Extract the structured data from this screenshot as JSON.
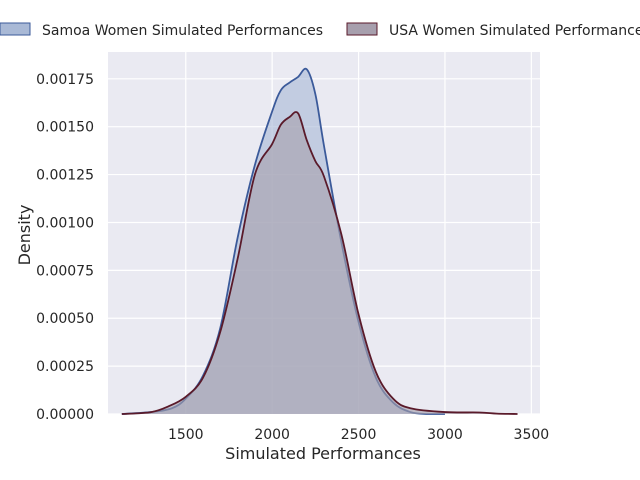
{
  "chart_data": {
    "type": "area",
    "title": "",
    "xlabel": "Simulated Performances",
    "ylabel": "Density",
    "xlim": [
      1050,
      3550
    ],
    "ylim": [
      0,
      0.00189
    ],
    "xticks": [
      1500,
      2000,
      2500,
      3000,
      3500
    ],
    "xtick_labels": [
      "1500",
      "2000",
      "2500",
      "3000",
      "3500"
    ],
    "yticks": [
      0,
      0.00025,
      0.0005,
      0.00075,
      0.001,
      0.00125,
      0.0015,
      0.00175
    ],
    "ytick_labels": [
      "0.00000",
      "0.00025",
      "0.00050",
      "0.00075",
      "0.00100",
      "0.00125",
      "0.00150",
      "0.00175"
    ],
    "grid": true,
    "legend_position": "top",
    "series": [
      {
        "name": "Samoa Women Simulated Performances",
        "color": "#3b5a9a",
        "fill": "#a9b9d6",
        "x": [
          1130,
          1300,
          1420,
          1500,
          1600,
          1700,
          1800,
          1900,
          2000,
          2050,
          2100,
          2150,
          2200,
          2250,
          2300,
          2400,
          2500,
          2600,
          2700,
          2800,
          2900,
          3000
        ],
        "y": [
          0,
          1e-05,
          3e-05,
          8e-05,
          0.0002,
          0.00045,
          0.00092,
          0.0013,
          0.00158,
          0.00169,
          0.00173,
          0.00176,
          0.0018,
          0.00167,
          0.0014,
          0.0009,
          0.00048,
          0.00019,
          6e-05,
          1e-05,
          0,
          0
        ]
      },
      {
        "name": "USA Women Simulated Performances",
        "color": "#5a1a2a",
        "fill": "#a79fad",
        "x": [
          1130,
          1300,
          1400,
          1500,
          1600,
          1700,
          1800,
          1900,
          2000,
          2050,
          2100,
          2150,
          2200,
          2250,
          2300,
          2400,
          2500,
          2600,
          2700,
          2800,
          3000,
          3200,
          3300,
          3420
        ],
        "y": [
          0,
          1e-05,
          4e-05,
          9e-05,
          0.00019,
          0.00043,
          0.00081,
          0.00125,
          0.00141,
          0.00151,
          0.00155,
          0.00157,
          0.00143,
          0.00132,
          0.00124,
          0.00094,
          0.00052,
          0.00022,
          8e-05,
          3e-05,
          1e-05,
          8e-06,
          2e-06,
          0
        ]
      }
    ]
  }
}
